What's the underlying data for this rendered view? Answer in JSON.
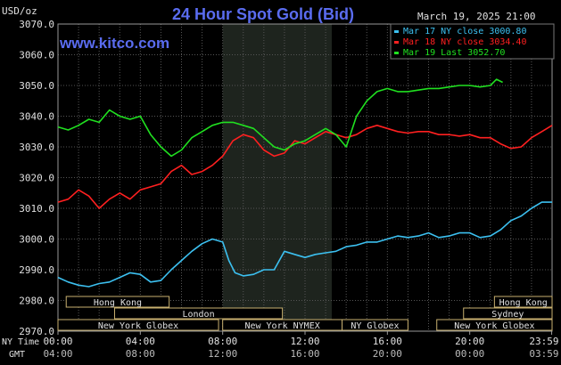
{
  "header": {
    "title": "24 Hour Spot Gold (Bid)",
    "website": "www.kitco.com",
    "date": "March 19, 2025 21:00",
    "unit_label": "USD/oz"
  },
  "legend": [
    {
      "label": "Mar 17 NY close 3000.80",
      "color": "#3cc0f0"
    },
    {
      "label": "Mar 18 NY close 3034.40",
      "color": "#ff2020"
    },
    {
      "label": "Mar 19 Last 3052.70",
      "color": "#20e020"
    }
  ],
  "sessions": [
    {
      "label": "Hong Kong",
      "start": 0.4,
      "end": 5.4
    },
    {
      "label": "London",
      "start": 2.75,
      "end": 10.9
    },
    {
      "label": "New York Globex",
      "start": 0.0,
      "end": 7.8
    },
    {
      "label": "New York NYMEX",
      "start": 8.0,
      "end": 13.8
    },
    {
      "label": "NY Globex",
      "start": 13.8,
      "end": 17.0
    },
    {
      "label": "Hong Kong",
      "start": 21.2,
      "end": 24.0
    },
    {
      "label": "Sydney",
      "start": 19.7,
      "end": 24.0
    },
    {
      "label": "New York Globex",
      "start": 18.4,
      "end": 24.0
    }
  ],
  "axis_labels": {
    "ny_time": "NY Time",
    "gmt": "GMT"
  },
  "chart_data": {
    "type": "line",
    "title": "24 Hour Spot Gold (Bid)",
    "ylabel": "USD/oz",
    "ylim": [
      2970,
      3070
    ],
    "xlim": [
      0,
      24
    ],
    "yticks": [
      "3070.0",
      "3060.0",
      "3050.0",
      "3040.0",
      "3030.0",
      "3020.0",
      "3010.0",
      "3000.0",
      "2990.0",
      "2980.0",
      "2970.0"
    ],
    "yvalues": [
      3070,
      3060,
      3050,
      3040,
      3030,
      3020,
      3010,
      3000,
      2990,
      2980,
      2970
    ],
    "xticks_ny": [
      "00:00",
      "04:00",
      "08:00",
      "12:00",
      "16:00",
      "20:00",
      "23:59"
    ],
    "xticks_gmt": [
      "04:00",
      "08:00",
      "12:00",
      "16:00",
      "20:00",
      "00:00",
      "03:59"
    ],
    "xtick_hours": [
      0,
      4,
      8,
      12,
      16,
      20,
      23.98
    ],
    "highlight": {
      "start": 8.0,
      "end": 13.3
    },
    "grid": true,
    "series": [
      {
        "name": "Mar 17 NY close 3000.80",
        "color": "#3cc0f0",
        "x": [
          0,
          0.5,
          1.0,
          1.5,
          2.0,
          2.5,
          3.0,
          3.5,
          4.0,
          4.5,
          5.0,
          5.5,
          6.0,
          6.5,
          7.0,
          7.5,
          8.0,
          8.3,
          8.6,
          9.0,
          9.5,
          10.0,
          10.5,
          11.0,
          11.5,
          12.0,
          12.5,
          13.0,
          13.5,
          14.0,
          14.5,
          15.0,
          15.5,
          16.0,
          16.5,
          17.0,
          17.5,
          18.0,
          18.5,
          19.0,
          19.5,
          20.0,
          20.5,
          21.0,
          21.5,
          22.0,
          22.5,
          23.0,
          23.5,
          24.0
        ],
        "values": [
          2987.5,
          2986,
          2985,
          2984.5,
          2985.5,
          2986,
          2987.5,
          2989,
          2988.5,
          2986,
          2986.5,
          2990,
          2993,
          2996,
          2998.5,
          3000,
          2999,
          2993,
          2989,
          2988,
          2988.5,
          2990,
          2990,
          2996,
          2995,
          2994,
          2995,
          2995.5,
          2996,
          2997.5,
          2998,
          2999,
          2999,
          3000,
          3001,
          3000.5,
          3001,
          3002,
          3000.5,
          3001,
          3002,
          3002,
          3000.5,
          3001,
          3003,
          3006,
          3007.5,
          3010,
          3012,
          3012
        ]
      },
      {
        "name": "Mar 18 NY close 3034.40",
        "color": "#ff2020",
        "x": [
          0,
          0.5,
          1.0,
          1.5,
          2.0,
          2.5,
          3.0,
          3.5,
          4.0,
          4.5,
          5.0,
          5.5,
          6.0,
          6.5,
          7.0,
          7.5,
          8.0,
          8.5,
          9.0,
          9.5,
          10.0,
          10.5,
          11.0,
          11.5,
          12.0,
          12.5,
          13.0,
          13.5,
          14.0,
          14.5,
          15.0,
          15.5,
          16.0,
          16.5,
          17.0,
          17.5,
          18.0,
          18.5,
          19.0,
          19.5,
          20.0,
          20.5,
          21.0,
          21.5,
          22.0,
          22.5,
          23.0,
          23.5,
          24.0
        ],
        "values": [
          3012,
          3013,
          3016,
          3014,
          3010,
          3013,
          3015,
          3013,
          3016,
          3017,
          3018,
          3022,
          3024,
          3021,
          3022,
          3024,
          3027,
          3032,
          3034,
          3033,
          3029,
          3027,
          3028,
          3032,
          3031,
          3033,
          3035,
          3034,
          3033,
          3034,
          3036,
          3037,
          3036,
          3035,
          3034.5,
          3035,
          3035,
          3034,
          3034,
          3033.5,
          3034,
          3033,
          3033,
          3031,
          3029.5,
          3030,
          3033,
          3035,
          3037
        ]
      },
      {
        "name": "Mar 19 Last 3052.70",
        "color": "#20e020",
        "x": [
          0,
          0.5,
          1.0,
          1.5,
          2.0,
          2.5,
          3.0,
          3.5,
          4.0,
          4.5,
          5.0,
          5.5,
          6.0,
          6.5,
          7.0,
          7.5,
          8.0,
          8.5,
          9.0,
          9.5,
          10.0,
          10.5,
          11.0,
          11.5,
          12.0,
          12.5,
          13.0,
          13.5,
          14.0,
          14.5,
          15.0,
          15.5,
          16.0,
          16.5,
          17.0,
          17.5,
          18.0,
          18.5,
          19.0,
          19.5,
          20.0,
          20.5,
          21.0,
          21.3,
          21.6
        ],
        "values": [
          3036.5,
          3035.5,
          3037,
          3039,
          3038,
          3042,
          3040,
          3039,
          3040,
          3034,
          3030,
          3027,
          3029,
          3033,
          3035,
          3037,
          3038,
          3038,
          3037,
          3036,
          3033,
          3030,
          3029,
          3031,
          3032,
          3034,
          3036,
          3034,
          3030,
          3040,
          3045,
          3048,
          3049,
          3048,
          3048,
          3048.5,
          3049,
          3049,
          3049.5,
          3050,
          3050,
          3049.5,
          3050,
          3052,
          3051
        ]
      }
    ]
  }
}
